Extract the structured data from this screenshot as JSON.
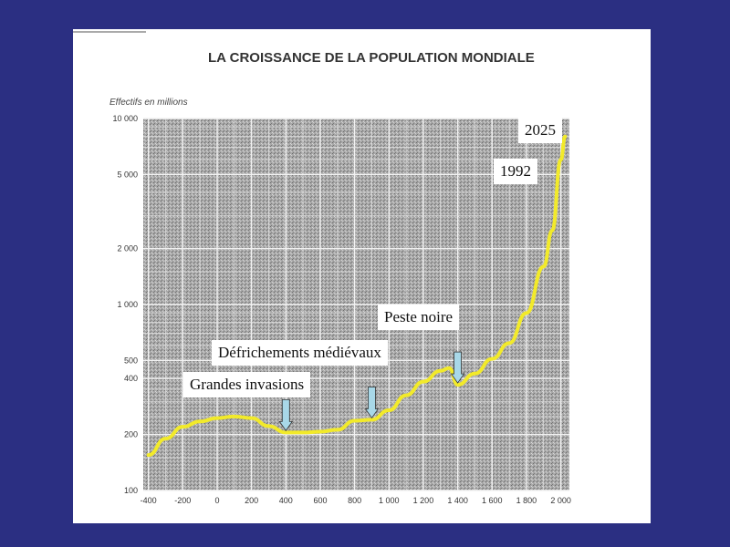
{
  "chart_data": {
    "type": "line",
    "title": "LA CROISSANCE DE LA POPULATION MONDIALE",
    "ylabel": "Effectifs en millions",
    "xlabel": "",
    "y_scale": "log",
    "xlim": [
      -430,
      2050
    ],
    "ylim": [
      100,
      10000
    ],
    "x_ticks": [
      -400,
      -200,
      0,
      200,
      400,
      600,
      800,
      1000,
      1200,
      1400,
      1600,
      1800,
      2000
    ],
    "x_tick_labels": [
      "-400",
      "-200",
      "0",
      "200",
      "400",
      "600",
      "800",
      "1 000",
      "1 200",
      "1 400",
      "1 600",
      "1 800",
      "2 000"
    ],
    "y_ticks": [
      100,
      200,
      400,
      500,
      1000,
      2000,
      5000,
      10000
    ],
    "y_tick_labels": [
      "100",
      "200",
      "400",
      "500",
      "1 000",
      "2 000",
      "5 000",
      "10 000"
    ],
    "grid": true,
    "line_color": "#f2ea2a",
    "series": [
      {
        "x": [
          -400,
          -300,
          -200,
          -100,
          0,
          100,
          200,
          300,
          400,
          500,
          600,
          700,
          800,
          900,
          1000,
          1100,
          1200,
          1300,
          1350,
          1400,
          1500,
          1600,
          1700,
          1800,
          1900,
          1950,
          2000,
          2025
        ],
        "values": [
          155,
          190,
          220,
          235,
          245,
          250,
          245,
          222,
          205,
          205,
          207,
          212,
          237,
          240,
          270,
          325,
          385,
          440,
          455,
          370,
          425,
          510,
          620,
          900,
          1600,
          2500,
          6000,
          8000
        ]
      }
    ],
    "annotations": [
      {
        "label": "Grandes invasions",
        "x": 400
      },
      {
        "label": "Défrichements médiévaux",
        "x": 900
      },
      {
        "label": "Peste noire",
        "x": 1400
      },
      {
        "label": "1992",
        "x": 1992
      },
      {
        "label": "2025",
        "x": 2025
      }
    ]
  }
}
